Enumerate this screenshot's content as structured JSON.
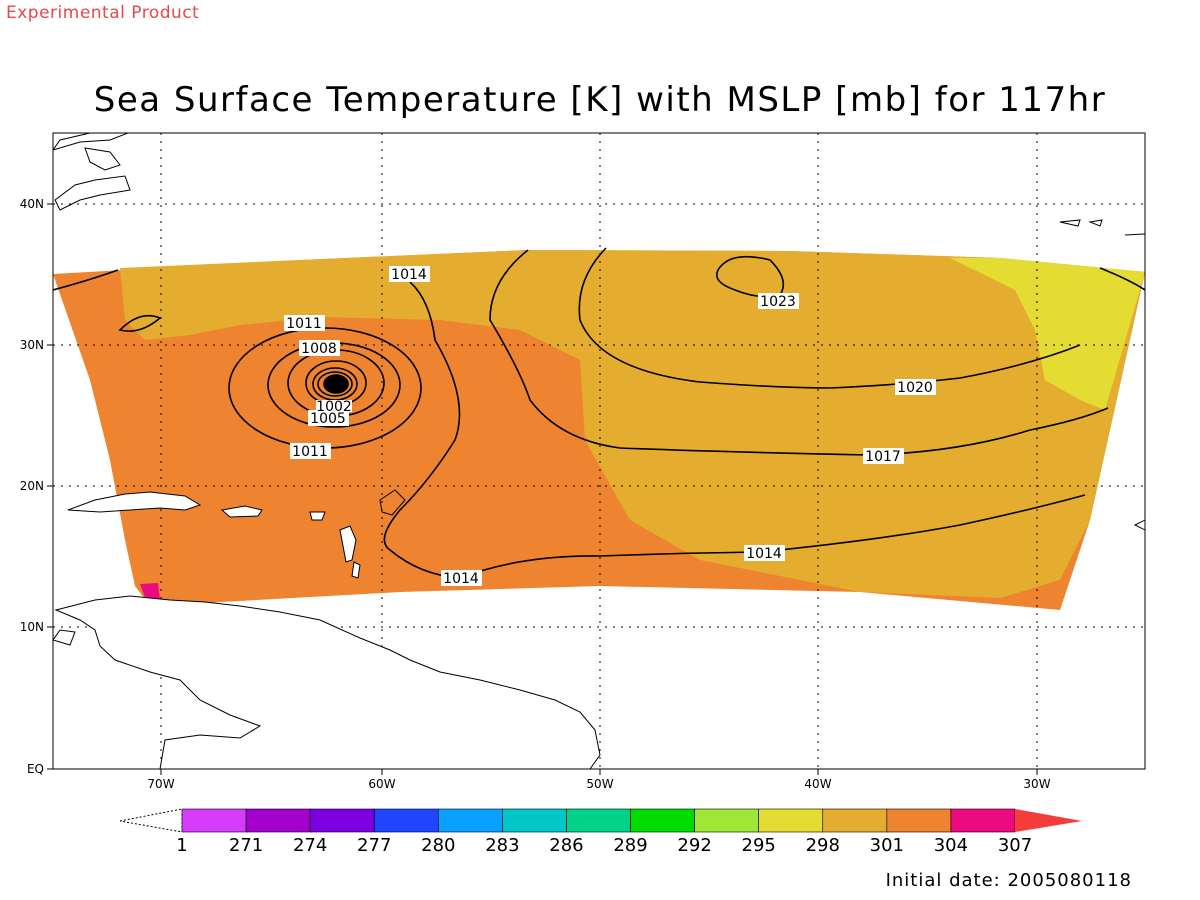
{
  "header": {
    "experimental_label": "Experimental Product",
    "title": "Sea Surface Temperature [K] with MSLP [mb] for 117hr"
  },
  "footer": {
    "initial_date": "Initial date: 2005080118"
  },
  "map": {
    "lat_ticks": [
      "EQ",
      "10N",
      "20N",
      "30N",
      "40N"
    ],
    "lon_ticks": [
      "70W",
      "60W",
      "50W",
      "40W",
      "30W"
    ],
    "grid": "dotted",
    "sst_colors": {
      "298": "#e4dc33",
      "301": "#e5ad30",
      "304": "#ee8430",
      "307": "#ec0a80"
    },
    "pressure_center": "1002",
    "contour_labels": [
      "1014",
      "1023",
      "1011",
      "1008",
      "1020",
      "1005",
      "1011",
      "1017",
      "1014",
      "1014"
    ]
  },
  "colorbar": {
    "labels": [
      "1",
      "271",
      "274",
      "277",
      "280",
      "283",
      "286",
      "289",
      "292",
      "295",
      "298",
      "301",
      "304",
      "307"
    ],
    "colors": [
      "#d63dfa",
      "#a300cb",
      "#7d00e0",
      "#2045ff",
      "#0aa0ff",
      "#00c8c8",
      "#00d28a",
      "#00dc00",
      "#a0e636",
      "#e4dc33",
      "#e5ad30",
      "#ee8430",
      "#ec0a80",
      "#f53c3c"
    ]
  }
}
